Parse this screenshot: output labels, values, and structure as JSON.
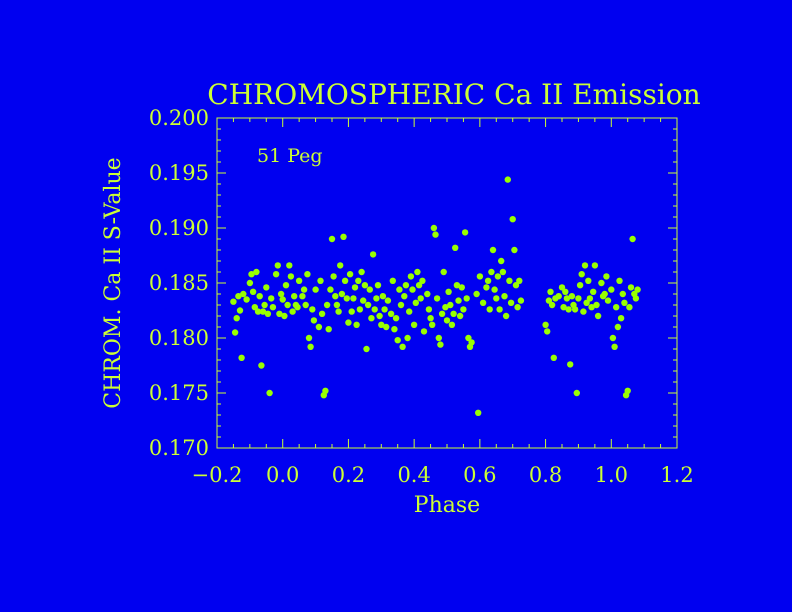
{
  "colors": {
    "background": "#0000f0",
    "foreground": "#ccff33",
    "points": "#99ff00"
  },
  "chart_data": {
    "type": "scatter",
    "title": "CHROMOSPHERIC Ca II Emission",
    "annotation": "51 Peg",
    "xlabel": "Phase",
    "ylabel": "CHROM. Ca II S-Value",
    "xlim": [
      -0.2,
      1.2
    ],
    "ylim": [
      0.17,
      0.2
    ],
    "xticks": [
      "-0.2",
      "0.0",
      "0.2",
      "0.4",
      "0.6",
      "0.8",
      "1.0",
      "1.2"
    ],
    "yticks": [
      "0.170",
      "0.175",
      "0.180",
      "0.185",
      "0.190",
      "0.195",
      "0.200"
    ],
    "grid": false,
    "points": [
      [
        -0.15,
        0.1833
      ],
      [
        -0.145,
        0.1805
      ],
      [
        -0.14,
        0.1818
      ],
      [
        -0.135,
        0.1838
      ],
      [
        -0.13,
        0.1825
      ],
      [
        -0.125,
        0.1782
      ],
      [
        -0.12,
        0.184
      ],
      [
        -0.11,
        0.1835
      ],
      [
        -0.1,
        0.185
      ],
      [
        -0.095,
        0.1858
      ],
      [
        -0.09,
        0.1842
      ],
      [
        -0.085,
        0.1828
      ],
      [
        -0.08,
        0.186
      ],
      [
        -0.075,
        0.1824
      ],
      [
        -0.07,
        0.1838
      ],
      [
        -0.065,
        0.1775
      ],
      [
        -0.06,
        0.1824
      ],
      [
        -0.055,
        0.183
      ],
      [
        -0.05,
        0.1846
      ],
      [
        -0.045,
        0.1822
      ],
      [
        -0.04,
        0.175
      ],
      [
        -0.035,
        0.1836
      ],
      [
        -0.03,
        0.1828
      ],
      [
        -0.02,
        0.1858
      ],
      [
        -0.015,
        0.1866
      ],
      [
        -0.01,
        0.1822
      ],
      [
        -0.005,
        0.184
      ],
      [
        0.0,
        0.1835
      ],
      [
        0.005,
        0.182
      ],
      [
        0.01,
        0.1848
      ],
      [
        0.015,
        0.183
      ],
      [
        0.02,
        0.1866
      ],
      [
        0.025,
        0.1856
      ],
      [
        0.03,
        0.1824
      ],
      [
        0.035,
        0.1838
      ],
      [
        0.04,
        0.183
      ],
      [
        0.045,
        0.1828
      ],
      [
        0.05,
        0.1852
      ],
      [
        0.06,
        0.1838
      ],
      [
        0.065,
        0.1844
      ],
      [
        0.07,
        0.183
      ],
      [
        0.075,
        0.1858
      ],
      [
        0.08,
        0.18
      ],
      [
        0.085,
        0.1792
      ],
      [
        0.09,
        0.1826
      ],
      [
        0.095,
        0.1816
      ],
      [
        0.1,
        0.1844
      ],
      [
        0.11,
        0.181
      ],
      [
        0.115,
        0.1852
      ],
      [
        0.12,
        0.1822
      ],
      [
        0.125,
        0.1748
      ],
      [
        0.13,
        0.1752
      ],
      [
        0.135,
        0.183
      ],
      [
        0.14,
        0.1808
      ],
      [
        0.145,
        0.1844
      ],
      [
        0.15,
        0.189
      ],
      [
        0.155,
        0.1856
      ],
      [
        0.16,
        0.1838
      ],
      [
        0.165,
        0.183
      ],
      [
        0.17,
        0.1824
      ],
      [
        0.175,
        0.1866
      ],
      [
        0.18,
        0.184
      ],
      [
        0.185,
        0.1892
      ],
      [
        0.19,
        0.1852
      ],
      [
        0.195,
        0.1836
      ],
      [
        0.2,
        0.1814
      ],
      [
        0.205,
        0.1858
      ],
      [
        0.21,
        0.1824
      ],
      [
        0.215,
        0.1836
      ],
      [
        0.22,
        0.1846
      ],
      [
        0.225,
        0.1812
      ],
      [
        0.23,
        0.1852
      ],
      [
        0.235,
        0.1826
      ],
      [
        0.24,
        0.186
      ],
      [
        0.245,
        0.1834
      ],
      [
        0.25,
        0.1848
      ],
      [
        0.255,
        0.179
      ],
      [
        0.26,
        0.183
      ],
      [
        0.265,
        0.1844
      ],
      [
        0.27,
        0.1818
      ],
      [
        0.275,
        0.1876
      ],
      [
        0.28,
        0.1826
      ],
      [
        0.285,
        0.1836
      ],
      [
        0.29,
        0.1848
      ],
      [
        0.295,
        0.182
      ],
      [
        0.3,
        0.1812
      ],
      [
        0.305,
        0.1838
      ],
      [
        0.31,
        0.1826
      ],
      [
        0.315,
        0.181
      ],
      [
        0.32,
        0.1834
      ],
      [
        0.33,
        0.1822
      ],
      [
        0.335,
        0.1852
      ],
      [
        0.34,
        0.1808
      ],
      [
        0.345,
        0.1818
      ],
      [
        0.35,
        0.1798
      ],
      [
        0.355,
        0.1844
      ],
      [
        0.36,
        0.183
      ],
      [
        0.365,
        0.1792
      ],
      [
        0.37,
        0.1838
      ],
      [
        0.375,
        0.1848
      ],
      [
        0.38,
        0.18
      ],
      [
        0.385,
        0.1824
      ],
      [
        0.39,
        0.1856
      ],
      [
        0.395,
        0.1844
      ],
      [
        0.4,
        0.1812
      ],
      [
        0.405,
        0.1832
      ],
      [
        0.41,
        0.186
      ],
      [
        0.415,
        0.1848
      ],
      [
        0.42,
        0.1836
      ],
      [
        0.425,
        0.1852
      ],
      [
        0.43,
        0.1806
      ],
      [
        0.44,
        0.184
      ],
      [
        0.445,
        0.1826
      ],
      [
        0.45,
        0.1818
      ],
      [
        0.455,
        0.1812
      ],
      [
        0.46,
        0.19
      ],
      [
        0.465,
        0.1894
      ],
      [
        0.47,
        0.1836
      ],
      [
        0.475,
        0.18
      ],
      [
        0.48,
        0.1794
      ],
      [
        0.485,
        0.1822
      ],
      [
        0.49,
        0.186
      ],
      [
        0.495,
        0.1828
      ],
      [
        0.5,
        0.1816
      ],
      [
        0.505,
        0.1842
      ],
      [
        0.51,
        0.183
      ],
      [
        0.515,
        0.1812
      ],
      [
        0.52,
        0.1822
      ],
      [
        0.525,
        0.1882
      ],
      [
        0.53,
        0.1848
      ],
      [
        0.535,
        0.1834
      ],
      [
        0.54,
        0.182
      ],
      [
        0.545,
        0.1846
      ],
      [
        0.55,
        0.1826
      ],
      [
        0.555,
        0.1896
      ],
      [
        0.56,
        0.1836
      ],
      [
        0.565,
        0.18
      ],
      [
        0.57,
        0.1792
      ],
      [
        0.575,
        0.1796
      ],
      [
        0.59,
        0.184
      ],
      [
        0.595,
        0.1732
      ],
      [
        0.6,
        0.1856
      ],
      [
        0.61,
        0.1832
      ],
      [
        0.62,
        0.1846
      ],
      [
        0.625,
        0.1852
      ],
      [
        0.63,
        0.1826
      ],
      [
        0.635,
        0.186
      ],
      [
        0.64,
        0.188
      ],
      [
        0.645,
        0.1844
      ],
      [
        0.65,
        0.1836
      ],
      [
        0.655,
        0.1856
      ],
      [
        0.66,
        0.1826
      ],
      [
        0.665,
        0.187
      ],
      [
        0.67,
        0.186
      ],
      [
        0.675,
        0.1838
      ],
      [
        0.68,
        0.182
      ],
      [
        0.685,
        0.1944
      ],
      [
        0.69,
        0.1852
      ],
      [
        0.695,
        0.1832
      ],
      [
        0.7,
        0.1908
      ],
      [
        0.705,
        0.188
      ],
      [
        0.71,
        0.1848
      ],
      [
        0.715,
        0.1828
      ],
      [
        0.72,
        0.1852
      ],
      [
        0.725,
        0.1834
      ],
      [
        0.8,
        0.1812
      ],
      [
        0.805,
        0.1806
      ],
      [
        0.81,
        0.1834
      ],
      [
        0.815,
        0.1842
      ],
      [
        0.82,
        0.183
      ],
      [
        0.825,
        0.1782
      ],
      [
        0.83,
        0.1836
      ],
      [
        0.84,
        0.1838
      ],
      [
        0.85,
        0.1846
      ],
      [
        0.855,
        0.1828
      ],
      [
        0.86,
        0.1842
      ],
      [
        0.865,
        0.1836
      ],
      [
        0.87,
        0.1826
      ],
      [
        0.875,
        0.1776
      ],
      [
        0.88,
        0.1838
      ],
      [
        0.885,
        0.183
      ],
      [
        0.89,
        0.1826
      ],
      [
        0.895,
        0.175
      ],
      [
        0.9,
        0.1836
      ],
      [
        0.905,
        0.1848
      ],
      [
        0.91,
        0.1858
      ],
      [
        0.915,
        0.1824
      ],
      [
        0.92,
        0.1866
      ],
      [
        0.925,
        0.1832
      ],
      [
        0.93,
        0.1852
      ],
      [
        0.935,
        0.1836
      ],
      [
        0.94,
        0.1828
      ],
      [
        0.945,
        0.1842
      ],
      [
        0.95,
        0.1866
      ],
      [
        0.955,
        0.183
      ],
      [
        0.96,
        0.182
      ],
      [
        0.97,
        0.185
      ],
      [
        0.975,
        0.1838
      ],
      [
        0.98,
        0.184
      ],
      [
        0.985,
        0.1856
      ],
      [
        0.99,
        0.1834
      ],
      [
        1.0,
        0.1844
      ],
      [
        1.005,
        0.18
      ],
      [
        1.01,
        0.1792
      ],
      [
        1.015,
        0.1828
      ],
      [
        1.02,
        0.181
      ],
      [
        1.025,
        0.1852
      ],
      [
        1.03,
        0.1818
      ],
      [
        1.035,
        0.184
      ],
      [
        1.04,
        0.1832
      ],
      [
        1.045,
        0.1748
      ],
      [
        1.05,
        0.1752
      ],
      [
        1.055,
        0.1828
      ],
      [
        1.06,
        0.1846
      ],
      [
        1.065,
        0.189
      ],
      [
        1.07,
        0.184
      ],
      [
        1.075,
        0.1836
      ],
      [
        1.08,
        0.1844
      ]
    ]
  }
}
